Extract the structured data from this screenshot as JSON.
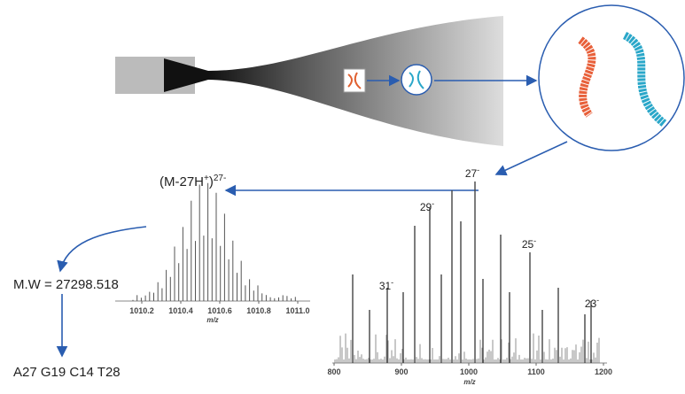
{
  "ion_label": {
    "base": "(M-27H",
    "sup1": "+",
    "mid": ")",
    "sup2": "27-"
  },
  "molecular_weight": "M.W = 27298.518",
  "composition": "A27 G19 C14 T28",
  "inset_spectrum": {
    "xticks": [
      "1010.2",
      "1010.4",
      "1010.6",
      "1010.8",
      "1011.0"
    ],
    "xlabel": "m/z"
  },
  "main_spectrum": {
    "xticks": [
      "800",
      "900",
      "1000",
      "1100",
      "1200"
    ],
    "xlabel": "m/z",
    "charge_labels": [
      {
        "base": "27",
        "sup": "-"
      },
      {
        "base": "29",
        "sup": "-"
      },
      {
        "base": "25",
        "sup": "-"
      },
      {
        "base": "31",
        "sup": "-"
      },
      {
        "base": "23",
        "sup": "-"
      }
    ]
  }
}
